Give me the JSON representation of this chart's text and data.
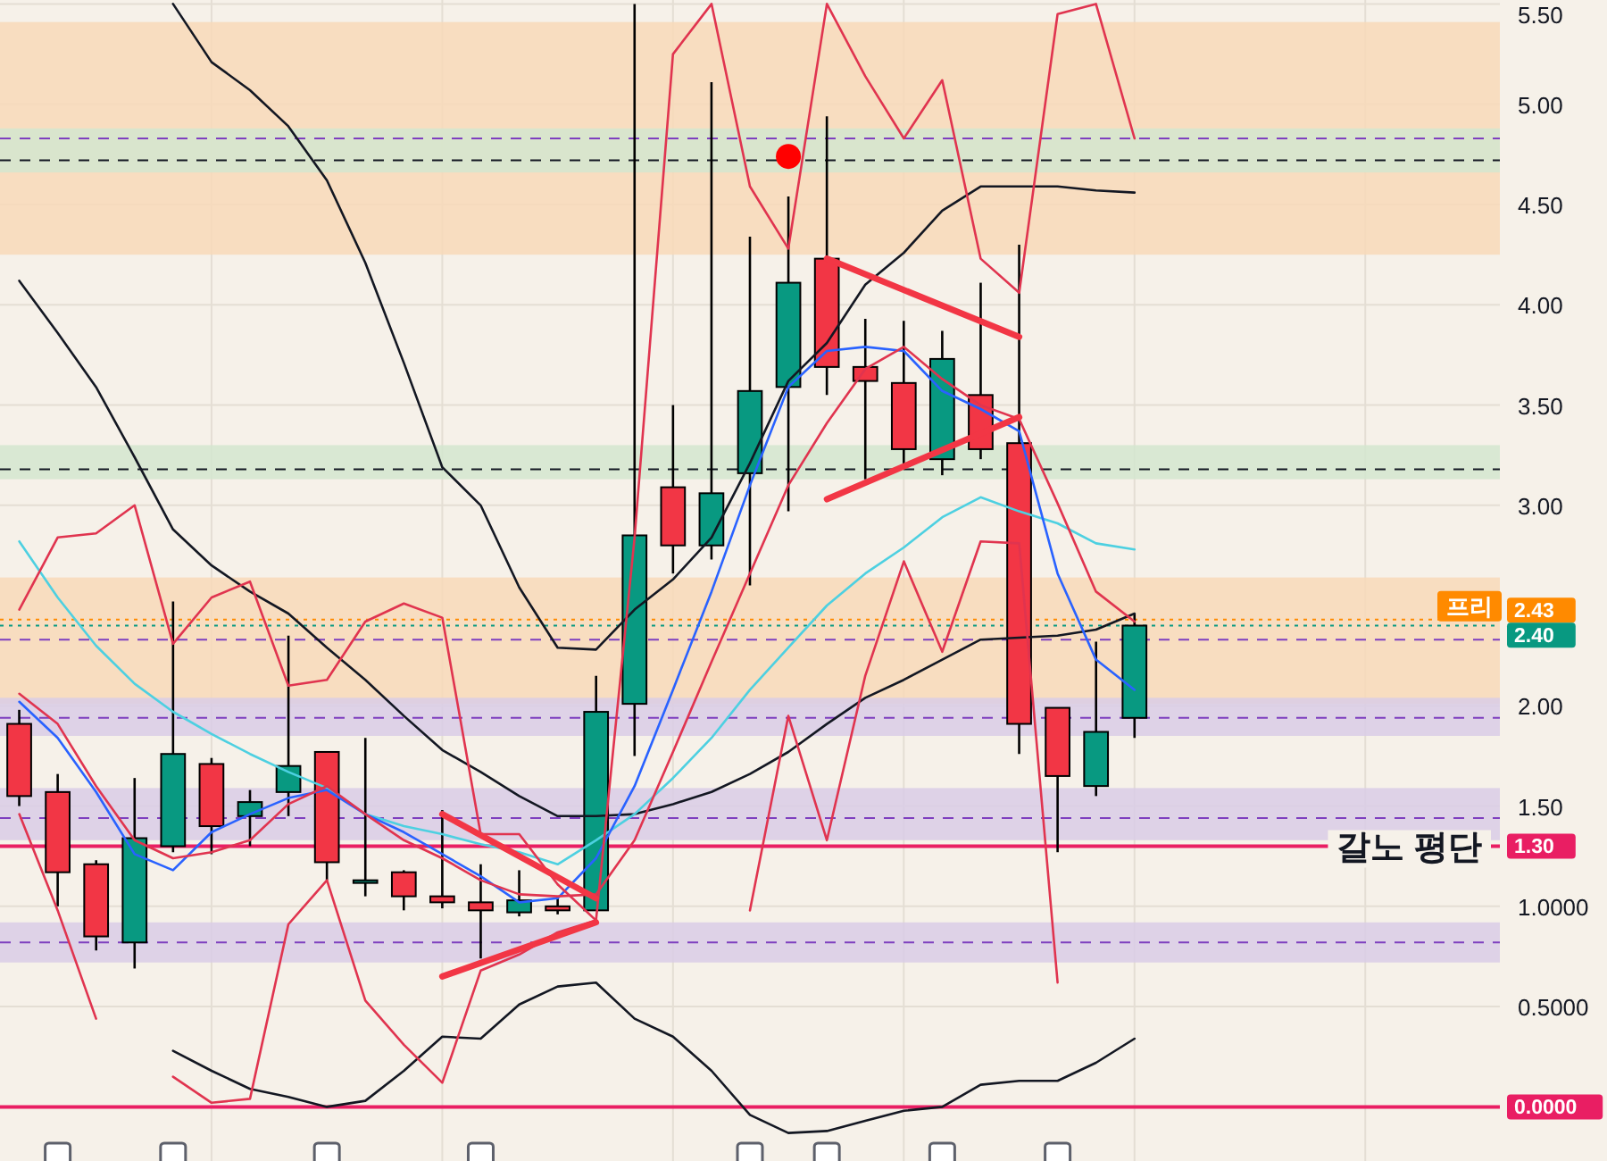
{
  "chart_data": {
    "type": "candlestick",
    "categories": [
      null,
      null,
      null,
      null,
      null,
      null,
      null,
      null,
      null,
      null,
      null,
      null,
      null,
      null,
      null,
      null,
      null,
      null,
      null,
      null,
      null,
      null,
      null,
      null,
      null,
      null,
      null,
      null,
      null,
      null,
      null,
      null,
      null,
      null,
      null,
      null,
      null,
      null,
      null
    ],
    "ohlc": [
      [
        1.91,
        1.98,
        1.5,
        1.55
      ],
      [
        1.57,
        1.66,
        1.0,
        1.17
      ],
      [
        1.21,
        1.23,
        0.78,
        0.85
      ],
      [
        0.82,
        1.64,
        0.69,
        1.34
      ],
      [
        1.3,
        2.52,
        1.27,
        1.76
      ],
      [
        1.71,
        1.74,
        1.26,
        1.4
      ],
      [
        1.45,
        1.58,
        1.3,
        1.52
      ],
      [
        1.57,
        2.35,
        1.45,
        1.7
      ],
      [
        1.77,
        1.77,
        1.13,
        1.22
      ],
      [
        1.13,
        1.84,
        1.05,
        1.13
      ],
      [
        1.17,
        1.18,
        0.98,
        1.05
      ],
      [
        1.05,
        1.48,
        0.99,
        1.02
      ],
      [
        1.02,
        1.21,
        0.74,
        0.98
      ],
      [
        0.97,
        1.18,
        0.95,
        1.03
      ],
      [
        1.0,
        1.05,
        0.96,
        0.98
      ],
      [
        0.98,
        2.15,
        0.98,
        1.97
      ],
      [
        2.01,
        5.5,
        1.75,
        2.85
      ],
      [
        3.09,
        3.5,
        2.66,
        2.8
      ],
      [
        2.8,
        5.11,
        2.73,
        3.06
      ],
      [
        3.16,
        4.34,
        2.6,
        3.57
      ],
      [
        3.59,
        4.54,
        2.97,
        4.11
      ],
      [
        4.23,
        4.94,
        3.55,
        3.69
      ],
      [
        3.69,
        3.93,
        3.13,
        3.62
      ],
      [
        3.61,
        3.92,
        3.19,
        3.28
      ],
      [
        3.23,
        3.87,
        3.15,
        3.73
      ],
      [
        3.55,
        4.11,
        3.23,
        3.28
      ],
      [
        3.31,
        4.3,
        1.76,
        1.91
      ],
      [
        1.99,
        1.99,
        1.27,
        1.65
      ],
      [
        1.6,
        2.32,
        1.55,
        1.87
      ],
      [
        1.94,
        2.46,
        1.84,
        2.4
      ],
      null,
      null,
      null,
      null,
      null,
      null,
      null,
      null,
      null
    ],
    "series": [
      {
        "type": "line",
        "color": "#131722",
        "values": [
          null,
          null,
          null,
          null,
          5.5,
          5.21,
          5.07,
          4.89,
          4.62,
          4.21,
          3.71,
          3.19,
          3.0,
          2.59,
          2.29,
          2.28,
          2.48,
          2.63,
          2.84,
          3.21,
          3.62,
          3.81,
          4.1,
          4.26,
          4.47,
          4.59,
          4.59,
          4.59,
          4.57,
          4.56,
          null,
          null,
          null,
          null,
          null,
          null,
          null,
          null,
          null
        ]
      },
      {
        "type": "line",
        "color": "#131722",
        "values": [
          4.12,
          3.86,
          3.59,
          3.24,
          2.88,
          2.7,
          2.57,
          2.46,
          2.29,
          2.13,
          1.95,
          1.78,
          1.67,
          1.55,
          1.45,
          1.45,
          1.46,
          1.51,
          1.57,
          1.66,
          1.77,
          1.91,
          2.04,
          2.13,
          2.23,
          2.33,
          2.34,
          2.35,
          2.38,
          2.46,
          null,
          null,
          null,
          null,
          null,
          null,
          null,
          null,
          null
        ]
      },
      {
        "type": "line",
        "color": "#131722",
        "values": [
          null,
          null,
          null,
          null,
          0.28,
          0.18,
          0.09,
          0.05,
          0.0,
          0.03,
          0.18,
          0.35,
          0.34,
          0.51,
          0.6,
          0.62,
          0.44,
          0.35,
          0.18,
          -0.04,
          -0.13,
          -0.12,
          -0.07,
          -0.02,
          0.0,
          0.11,
          0.13,
          0.13,
          0.22,
          0.34,
          null,
          null,
          null,
          null,
          null,
          null,
          null,
          null,
          null
        ]
      },
      {
        "type": "line",
        "color": "#4dd0e1",
        "values": [
          2.82,
          2.54,
          2.3,
          2.11,
          1.97,
          1.86,
          1.76,
          1.67,
          1.59,
          1.46,
          1.4,
          1.36,
          1.31,
          1.27,
          1.21,
          1.33,
          1.46,
          1.64,
          1.84,
          2.08,
          2.29,
          2.5,
          2.66,
          2.79,
          2.94,
          3.04,
          2.97,
          2.91,
          2.81,
          2.78,
          null,
          null,
          null,
          null,
          null,
          null,
          null,
          null,
          null
        ]
      },
      {
        "type": "line",
        "color": "#2962ff",
        "values": [
          2.02,
          1.84,
          1.57,
          1.26,
          1.18,
          1.37,
          1.46,
          1.54,
          1.58,
          1.46,
          1.37,
          1.26,
          1.15,
          1.02,
          1.04,
          1.24,
          1.6,
          2.08,
          2.57,
          3.1,
          3.59,
          3.77,
          3.79,
          3.77,
          3.57,
          3.48,
          3.37,
          2.66,
          2.23,
          2.08,
          null,
          null,
          null,
          null,
          null,
          null,
          null,
          null,
          null
        ]
      },
      {
        "type": "line",
        "color": "#e0344f",
        "values": [
          2.06,
          1.91,
          1.6,
          1.33,
          1.24,
          1.27,
          1.33,
          1.51,
          1.6,
          1.46,
          1.33,
          1.24,
          1.13,
          1.06,
          1.05,
          1.06,
          1.33,
          1.77,
          2.22,
          2.66,
          3.1,
          3.41,
          3.68,
          3.79,
          3.63,
          3.5,
          3.43,
          3.01,
          2.57,
          2.42,
          null,
          null,
          null,
          null,
          null,
          null,
          null,
          null,
          null
        ]
      },
      {
        "type": "line",
        "color": "#e0344f",
        "values": [
          2.48,
          2.84,
          2.86,
          3.0,
          2.31,
          2.54,
          2.62,
          2.1,
          2.13,
          2.42,
          2.51,
          2.44,
          1.36,
          1.36,
          1.11,
          0.93,
          2.84,
          5.25,
          5.5,
          4.59,
          4.28,
          5.5,
          5.14,
          4.83,
          5.12,
          4.23,
          4.06,
          5.45,
          5.5,
          4.83,
          null,
          null,
          null,
          null,
          null,
          null,
          null,
          null,
          null
        ]
      },
      {
        "type": "line",
        "color": "#e0344f",
        "values": [
          1.46,
          0.98,
          0.44,
          null,
          0.15,
          0.02,
          0.04,
          0.91,
          1.13,
          0.53,
          0.31,
          0.12,
          0.68,
          0.76,
          0.87,
          0.93,
          null,
          null,
          null,
          0.98,
          1.95,
          1.33,
          2.15,
          2.72,
          2.27,
          2.82,
          2.81,
          0.62,
          null,
          null,
          null,
          null,
          null,
          null,
          null,
          null,
          null,
          null,
          null
        ]
      },
      {
        "type": "line",
        "color": "#f23645",
        "values": [
          null,
          null,
          null,
          null,
          null,
          null,
          null,
          null,
          null,
          null,
          null,
          null,
          null,
          null,
          null,
          null,
          null,
          null,
          null,
          null,
          null,
          4.23,
          null,
          null,
          null,
          null,
          3.84,
          null,
          null,
          null,
          null,
          null,
          null,
          null,
          null,
          null,
          null,
          null,
          null
        ]
      },
      {
        "type": "line",
        "color": "#f23645",
        "values": [
          null,
          null,
          null,
          null,
          null,
          null,
          null,
          null,
          null,
          null,
          null,
          null,
          null,
          null,
          null,
          null,
          null,
          null,
          null,
          null,
          null,
          3.03,
          null,
          null,
          null,
          null,
          3.44,
          null,
          null,
          null,
          null,
          null,
          null,
          null,
          null,
          null,
          null,
          null,
          null
        ]
      },
      {
        "type": "line",
        "color": "#f23645",
        "values": [
          null,
          null,
          null,
          null,
          null,
          null,
          null,
          null,
          null,
          null,
          null,
          1.46,
          null,
          null,
          null,
          1.04,
          null,
          null,
          null,
          null,
          null,
          null,
          null,
          null,
          null,
          null,
          null,
          null,
          null,
          null,
          null,
          null,
          null,
          null,
          null,
          null,
          null,
          null,
          null
        ]
      },
      {
        "type": "line",
        "color": "#f23645",
        "values": [
          null,
          null,
          null,
          null,
          null,
          null,
          null,
          null,
          null,
          null,
          null,
          0.65,
          null,
          null,
          null,
          0.92,
          null,
          null,
          null,
          null,
          null,
          null,
          null,
          null,
          null,
          null,
          null,
          null,
          null,
          null,
          null,
          null,
          null,
          null,
          null,
          null,
          null,
          null,
          null
        ]
      },
      {
        "type": "scatter",
        "color": "#ff0000",
        "values": [
          null,
          null,
          null,
          null,
          null,
          null,
          null,
          null,
          null,
          null,
          null,
          null,
          null,
          null,
          null,
          null,
          null,
          null,
          null,
          null,
          4.74,
          null,
          null,
          null,
          null,
          null,
          null,
          null,
          null,
          null,
          null,
          null,
          null,
          null,
          null,
          null,
          null,
          null,
          null
        ]
      }
    ],
    "bands": [
      {
        "axis": "y",
        "from": 4.25,
        "to": 5.41,
        "color": "#f8d9b8"
      },
      {
        "axis": "y",
        "from": 2.01,
        "to": 2.64,
        "color": "#f8d9b8"
      },
      {
        "axis": "y",
        "from": 1.33,
        "to": 1.59,
        "color": "#d9cde6"
      },
      {
        "axis": "y",
        "from": 0.72,
        "to": 0.92,
        "color": "#d9cde6"
      },
      {
        "axis": "y",
        "from": 4.66,
        "to": 4.88,
        "color": "#d4e6cf"
      },
      {
        "axis": "y",
        "from": 3.13,
        "to": 3.3,
        "color": "#d4e6cf"
      },
      {
        "axis": "y",
        "from": 1.85,
        "to": 2.04,
        "color": "#d9cde6"
      }
    ],
    "ref_lines": [
      {
        "axis": "y",
        "value": 4.83,
        "color": "#7e3fbf",
        "line_style": "dashed"
      },
      {
        "axis": "y",
        "value": 4.72,
        "color": "#131722",
        "line_style": "dashed"
      },
      {
        "axis": "y",
        "value": 3.18,
        "color": "#131722",
        "line_style": "dashed"
      },
      {
        "axis": "y",
        "value": 2.33,
        "color": "#7e3fbf",
        "line_style": "dashed"
      },
      {
        "axis": "y",
        "value": 1.94,
        "color": "#7e3fbf",
        "line_style": "dashed"
      },
      {
        "axis": "y",
        "value": 1.44,
        "color": "#7e3fbf",
        "line_style": "dashed"
      },
      {
        "axis": "y",
        "value": 0.82,
        "color": "#7e3fbf",
        "line_style": "dashed"
      },
      {
        "axis": "y",
        "value": 2.43,
        "color": "#ff8a00",
        "line_style": "dotted",
        "label": "프리"
      },
      {
        "axis": "y",
        "value": 2.4,
        "color": "#089981",
        "line_style": "dotted"
      },
      {
        "axis": "y",
        "value": 1.3,
        "color": "#e91e63",
        "line_style": "solid",
        "label": "갈노 평단"
      },
      {
        "axis": "y",
        "value": 0,
        "color": "#e91e63",
        "line_style": "solid"
      }
    ],
    "ylim": [
      -0.27,
      5.52
    ],
    "yticks": [
      {
        "value": 5.5,
        "label": "5.50"
      },
      {
        "value": 5,
        "label": "5.00"
      },
      {
        "value": 4.5,
        "label": "4.50"
      },
      {
        "value": 4,
        "label": "4.00"
      },
      {
        "value": 3.5,
        "label": "3.50"
      },
      {
        "value": 3,
        "label": "3.00"
      },
      {
        "value": 2,
        "label": "2.00"
      },
      {
        "value": 1.5,
        "label": "1.50"
      },
      {
        "value": 1,
        "label": "1.0000"
      },
      {
        "value": 0.5,
        "label": "0.5000"
      },
      {
        "value": 2.43,
        "label": "2.43"
      },
      {
        "value": 2.4,
        "label": "2.40"
      },
      {
        "value": 1.3,
        "label": "1.30"
      },
      {
        "value": 0,
        "label": "0.0000"
      }
    ],
    "grid": true,
    "tick_labels": "y"
  }
}
